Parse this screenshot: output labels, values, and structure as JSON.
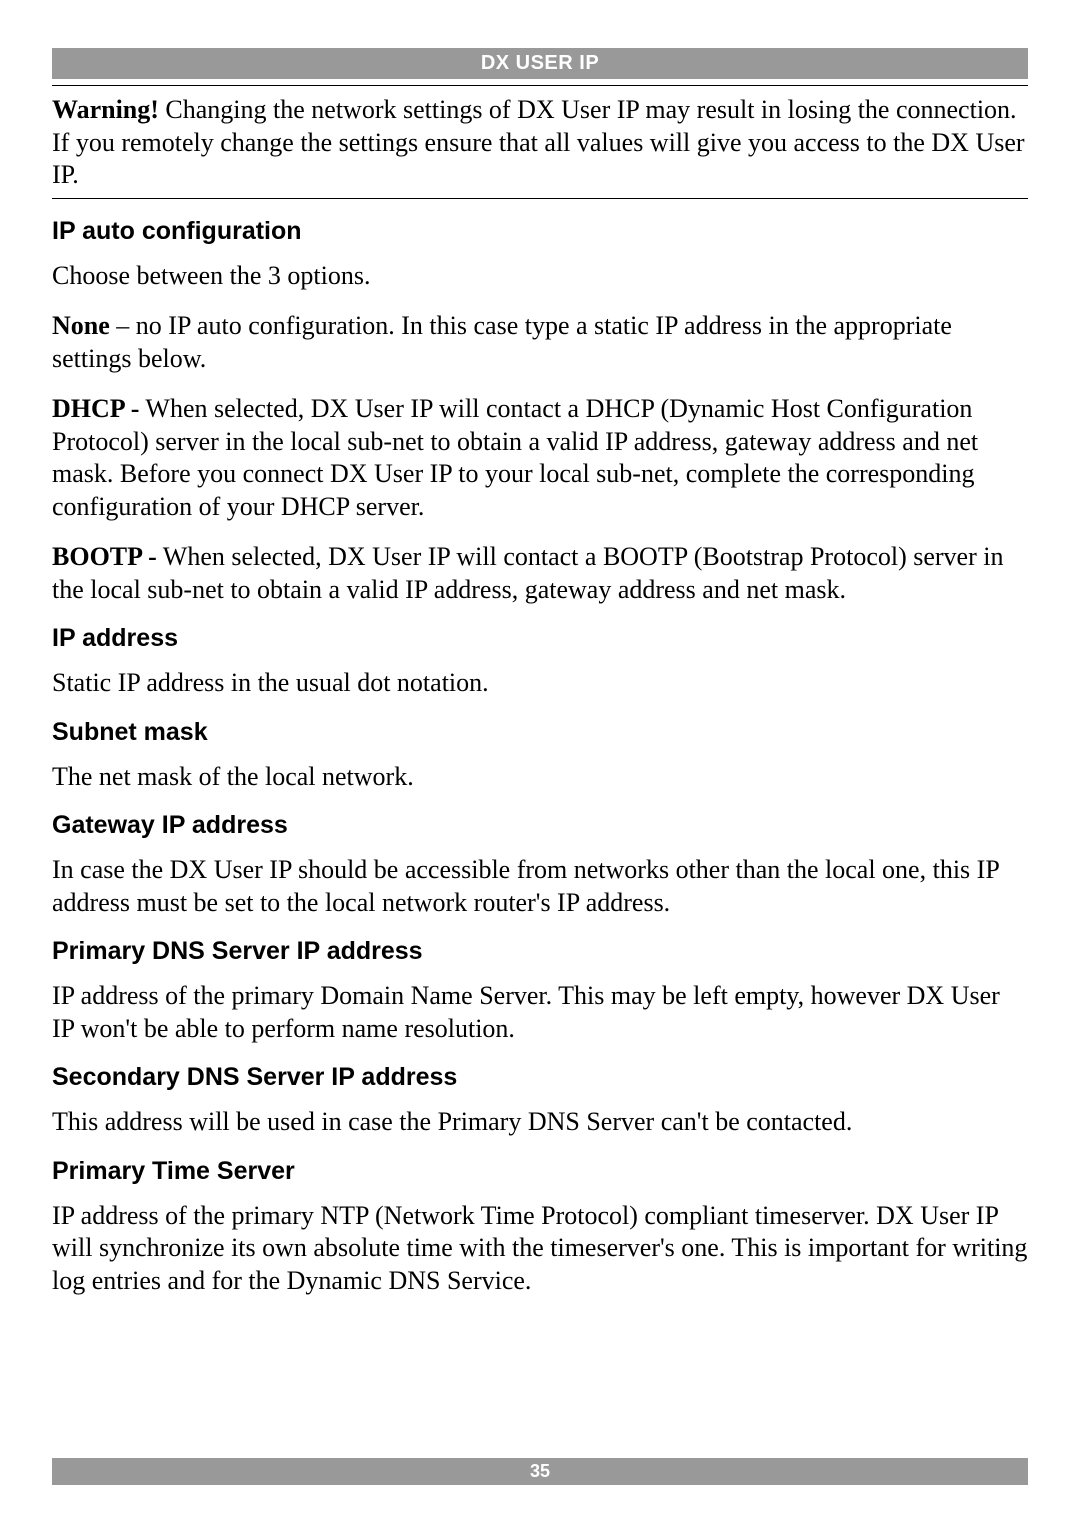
{
  "header": {
    "title": "DX USER IP"
  },
  "warning": {
    "label": "Warning!",
    "text": " Changing the network settings of DX User IP may result in losing the connection. If you remotely change the settings ensure that all values will give you access to the DX User IP."
  },
  "sections": {
    "ip_auto": {
      "heading": "IP auto configuration",
      "intro": "Choose between the 3 options.",
      "none_label": "None",
      "none_text": " – no IP auto configuration. In this case type a static IP address in the appropriate settings below.",
      "dhcp_label": "DHCP -",
      "dhcp_text": " When selected, DX User IP will contact a DHCP (Dynamic Host Configuration Protocol) server in the local sub-net to obtain a valid IP address, gateway address and net mask. Before you connect DX User IP to your local sub-net, complete the corresponding configuration of your DHCP server.",
      "bootp_label": "BOOTP -",
      "bootp_text": " When selected, DX User IP will contact a BOOTP (Bootstrap Protocol) server in the local sub-net to obtain a valid IP address, gateway address and net mask."
    },
    "ip_address": {
      "heading": "IP address",
      "text": "Static IP address in the usual dot notation."
    },
    "subnet": {
      "heading": "Subnet mask",
      "text": "The net mask of the local network."
    },
    "gateway": {
      "heading": "Gateway IP address",
      "text": "In case the DX User IP should be accessible from networks other than the local one, this IP address must be set to the local network router's IP address."
    },
    "primary_dns": {
      "heading": "Primary DNS Server IP address",
      "text": "IP address of the primary Domain Name Server. This may be left empty, however DX User IP won't be able to perform name resolution."
    },
    "secondary_dns": {
      "heading": "Secondary DNS Server IP address",
      "text": "This address will be used in case the Primary DNS Server can't be contacted."
    },
    "primary_time": {
      "heading": "Primary Time Server",
      "text": "IP address of the primary NTP (Network Time Protocol) compliant timeserver. DX User IP will synchronize its own absolute time with the timeserver's one. This is important for writing log entries and for the Dynamic DNS Service."
    }
  },
  "footer": {
    "page": "35"
  },
  "styles": {
    "page_bg": "#ffffff",
    "bar_bg": "#999999",
    "bar_fg": "#ffffff",
    "text_color": "#000000",
    "body_fontsize": 26,
    "heading_fontsize": 25,
    "header_fontsize": 20,
    "footer_fontsize": 18
  }
}
